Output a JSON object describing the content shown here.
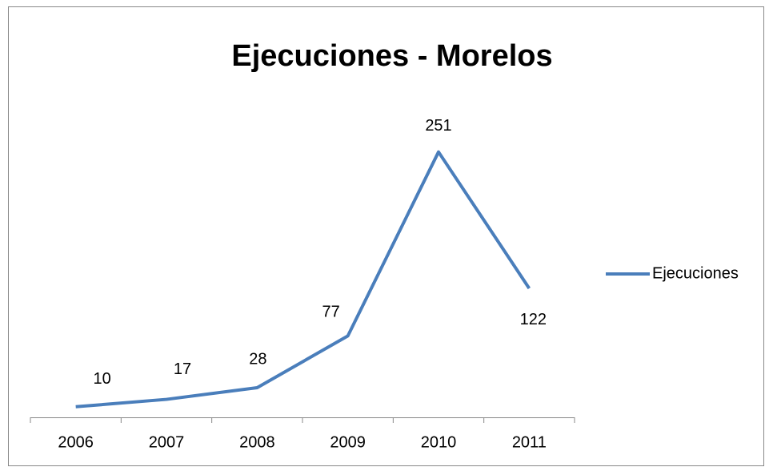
{
  "chart_data": {
    "type": "line",
    "title": "Ejecuciones - Morelos",
    "categories": [
      "2006",
      "2007",
      "2008",
      "2009",
      "2010",
      "2011"
    ],
    "series": [
      {
        "name": "Ejecuciones",
        "color": "#4a7ebb",
        "values": [
          10,
          17,
          28,
          77,
          251,
          122
        ]
      }
    ],
    "ylim": [
      0,
      300
    ],
    "legend": "right"
  }
}
